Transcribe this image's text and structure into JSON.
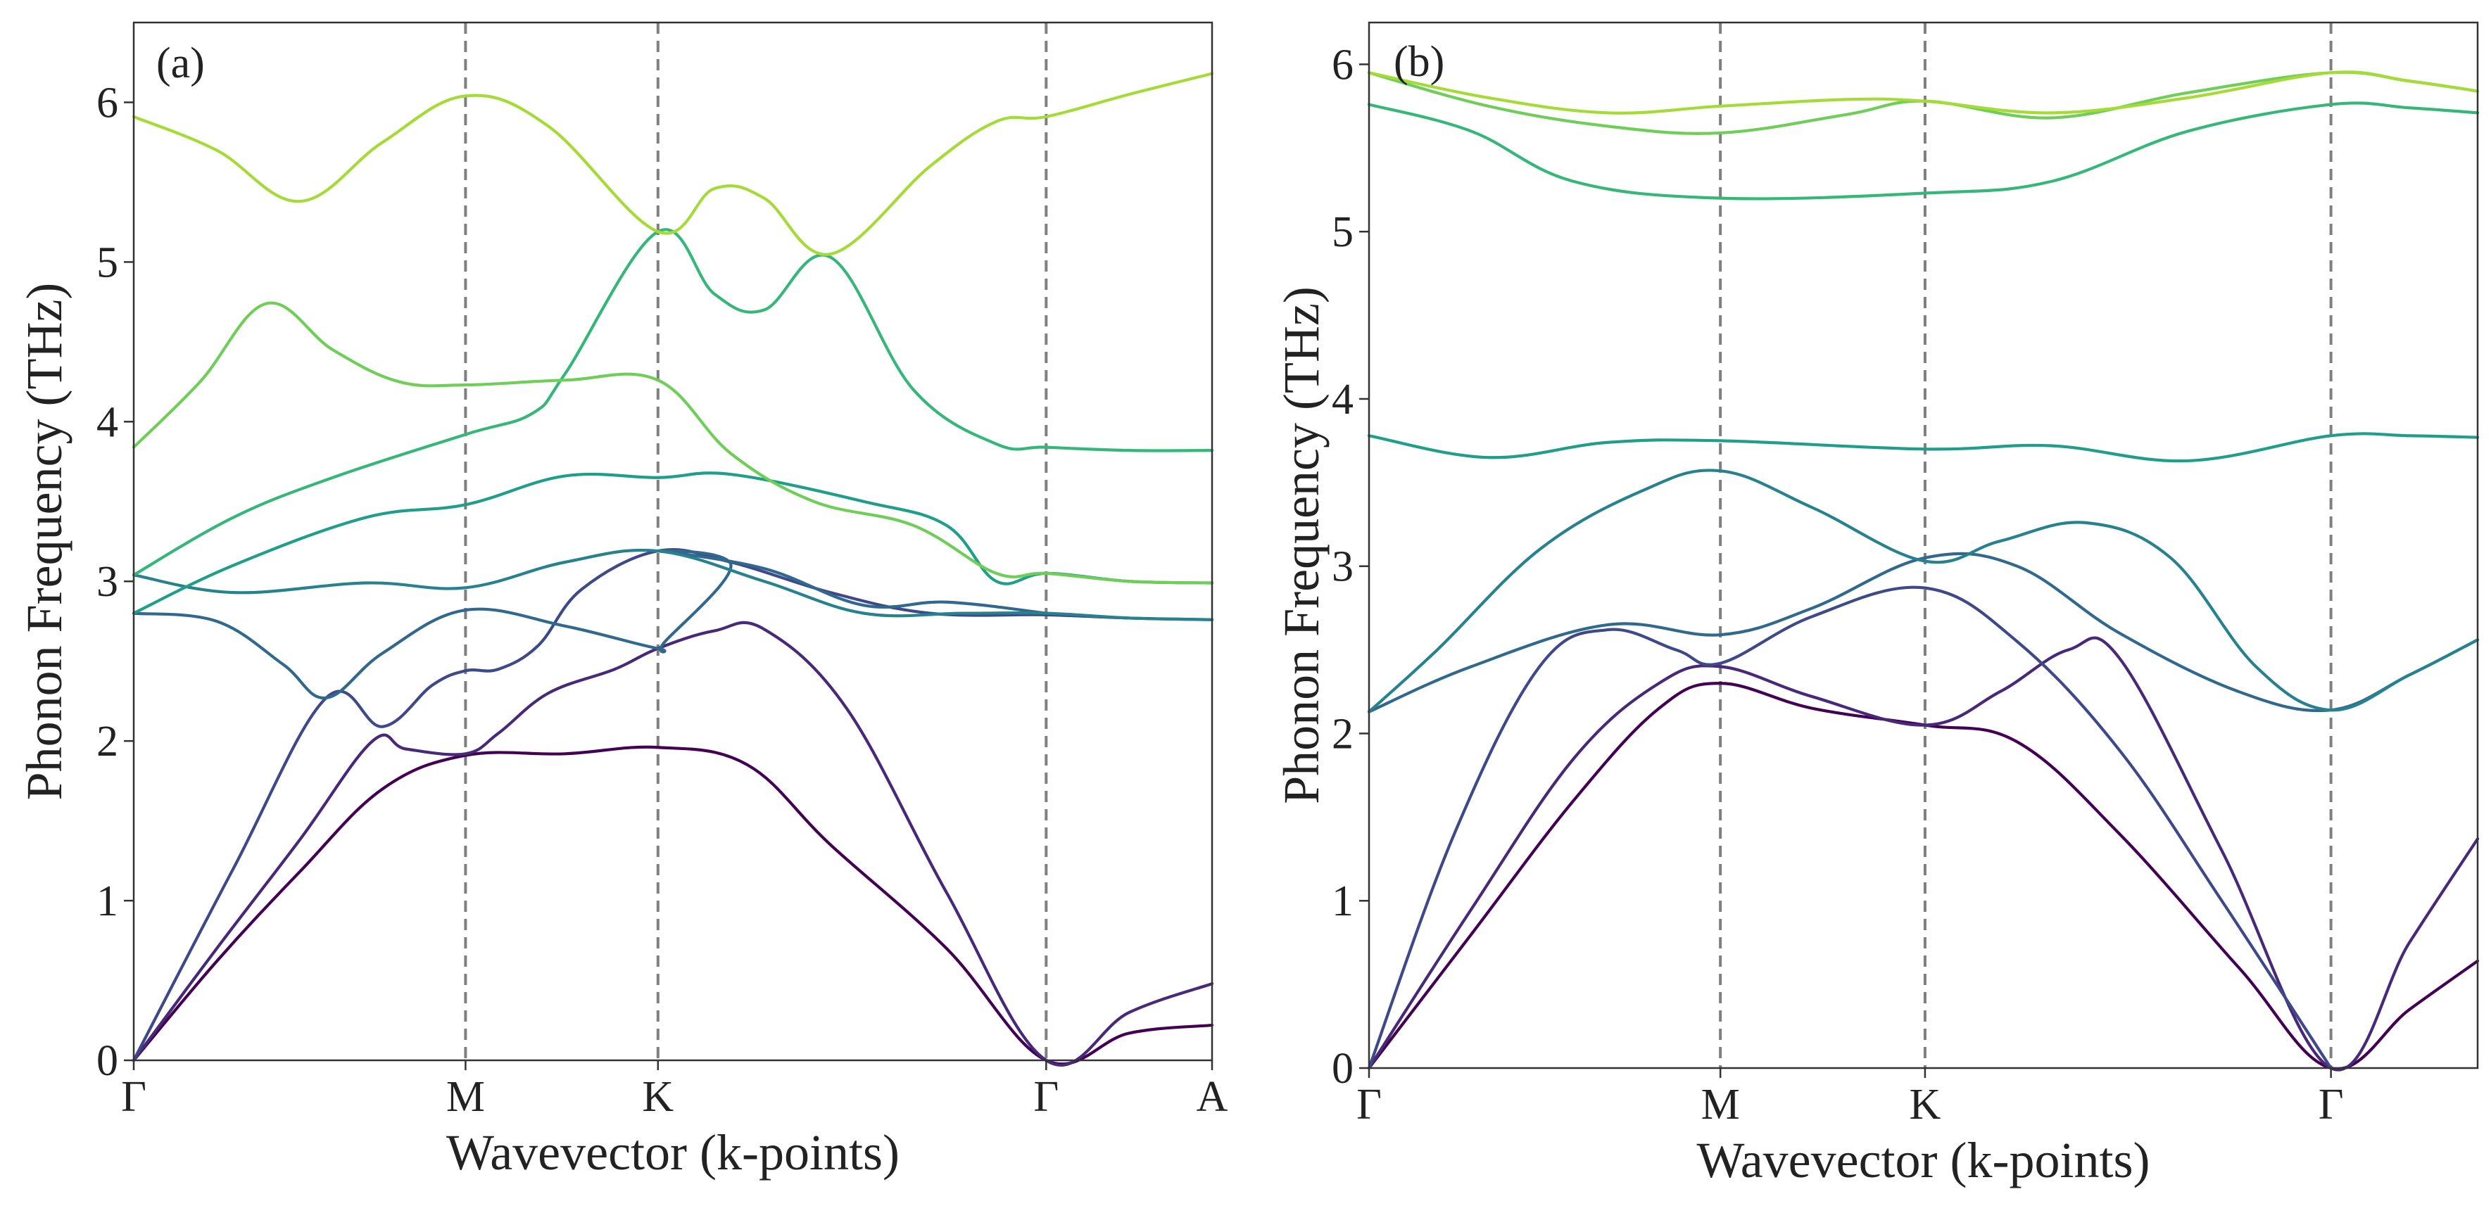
{
  "chart_data": [
    {
      "type": "line",
      "panel_label": "(a)",
      "xlabel": "Wavevector (k-points)",
      "ylabel": "Phonon Frequency (THz)",
      "ylim": [
        0,
        6.5
      ],
      "yticks": [
        0,
        1,
        2,
        3,
        4,
        5,
        6
      ],
      "xlim": [
        0,
        3.25
      ],
      "high_symmetry_points": [
        {
          "label": "Γ",
          "x": 0
        },
        {
          "label": "M",
          "x": 1.0
        },
        {
          "label": "K",
          "x": 1.58
        },
        {
          "label": "Γ",
          "x": 2.75
        },
        {
          "label": "A",
          "x": 3.25
        }
      ],
      "series": [
        {
          "name": "band 1",
          "color": "#440154",
          "points": [
            [
              0,
              0
            ],
            [
              0.25,
              0.62
            ],
            [
              0.5,
              1.18
            ],
            [
              0.75,
              1.7
            ],
            [
              1.0,
              1.91
            ],
            [
              1.3,
              1.92
            ],
            [
              1.58,
              1.96
            ],
            [
              1.85,
              1.85
            ],
            [
              2.1,
              1.35
            ],
            [
              2.45,
              0.7
            ],
            [
              2.75,
              0
            ],
            [
              3.0,
              0.17
            ],
            [
              3.25,
              0.22
            ]
          ]
        },
        {
          "name": "band 2",
          "color": "#482878",
          "points": [
            [
              0,
              0
            ],
            [
              0.25,
              0.7
            ],
            [
              0.5,
              1.38
            ],
            [
              0.72,
              2.0
            ],
            [
              0.82,
              1.95
            ],
            [
              1.0,
              1.92
            ],
            [
              1.1,
              2.05
            ],
            [
              1.25,
              2.3
            ],
            [
              1.45,
              2.45
            ],
            [
              1.58,
              2.58
            ],
            [
              1.75,
              2.69
            ],
            [
              1.9,
              2.7
            ],
            [
              2.15,
              2.2
            ],
            [
              2.45,
              1.05
            ],
            [
              2.75,
              0
            ],
            [
              3.0,
              0.3
            ],
            [
              3.25,
              0.48
            ]
          ]
        },
        {
          "name": "band 3",
          "color": "#3e4989",
          "points": [
            [
              0,
              0
            ],
            [
              0.3,
              1.2
            ],
            [
              0.58,
              2.27
            ],
            [
              0.75,
              2.09
            ],
            [
              0.9,
              2.35
            ],
            [
              1.0,
              2.44
            ],
            [
              1.1,
              2.45
            ],
            [
              1.22,
              2.6
            ],
            [
              1.35,
              2.95
            ],
            [
              1.58,
              3.19
            ],
            [
              1.8,
              3.12
            ],
            [
              2.1,
              2.93
            ],
            [
              2.4,
              2.8
            ],
            [
              2.75,
              2.79
            ],
            [
              3.0,
              2.77
            ],
            [
              3.25,
              2.76
            ]
          ]
        },
        {
          "name": "band 4",
          "color": "#31688e",
          "points": [
            [
              0,
              2.8
            ],
            [
              0.25,
              2.75
            ],
            [
              0.45,
              2.48
            ],
            [
              0.58,
              2.27
            ],
            [
              0.75,
              2.55
            ],
            [
              1.0,
              2.82
            ],
            [
              1.3,
              2.72
            ],
            [
              1.58,
              2.58
            ],
            [
              1.6,
              2.62
            ],
            [
              1.8,
              3.1
            ],
            [
              1.58,
              3.19
            ],
            [
              1.9,
              3.08
            ],
            [
              2.2,
              2.85
            ],
            [
              2.45,
              2.87
            ],
            [
              2.75,
              2.8
            ]
          ]
        },
        {
          "name": "band 5",
          "color": "#26828e",
          "points": [
            [
              0,
              3.04
            ],
            [
              0.3,
              2.93
            ],
            [
              0.7,
              2.99
            ],
            [
              1.0,
              2.96
            ],
            [
              1.3,
              3.12
            ],
            [
              1.58,
              3.19
            ],
            [
              1.9,
              3.0
            ],
            [
              2.2,
              2.8
            ],
            [
              2.5,
              2.8
            ],
            [
              2.75,
              2.8
            ],
            [
              3.0,
              2.77
            ],
            [
              3.25,
              2.76
            ]
          ]
        },
        {
          "name": "band 6",
          "color": "#1f9e89",
          "points": [
            [
              0,
              2.8
            ],
            [
              0.3,
              3.1
            ],
            [
              0.7,
              3.4
            ],
            [
              1.0,
              3.48
            ],
            [
              1.3,
              3.66
            ],
            [
              1.58,
              3.65
            ],
            [
              1.8,
              3.67
            ],
            [
              2.2,
              3.5
            ],
            [
              2.45,
              3.35
            ],
            [
              2.6,
              3.0
            ],
            [
              2.75,
              3.05
            ],
            [
              3.0,
              3.0
            ],
            [
              3.25,
              2.99
            ]
          ]
        },
        {
          "name": "band 7",
          "color": "#35b779",
          "points": [
            [
              0,
              3.04
            ],
            [
              0.3,
              3.4
            ],
            [
              0.6,
              3.65
            ],
            [
              1.0,
              3.92
            ],
            [
              1.2,
              4.05
            ],
            [
              1.3,
              4.3
            ],
            [
              1.58,
              5.19
            ],
            [
              1.75,
              4.8
            ],
            [
              1.9,
              4.7
            ],
            [
              2.1,
              5.03
            ],
            [
              2.35,
              4.2
            ],
            [
              2.6,
              3.86
            ],
            [
              2.75,
              3.84
            ],
            [
              3.0,
              3.82
            ],
            [
              3.25,
              3.82
            ]
          ]
        },
        {
          "name": "band 8",
          "color": "#6ece58",
          "points": [
            [
              0,
              3.84
            ],
            [
              0.2,
              4.25
            ],
            [
              0.4,
              4.74
            ],
            [
              0.6,
              4.45
            ],
            [
              0.8,
              4.25
            ],
            [
              1.0,
              4.23
            ],
            [
              1.3,
              4.26
            ],
            [
              1.58,
              4.26
            ],
            [
              1.8,
              3.8
            ],
            [
              2.05,
              3.5
            ],
            [
              2.35,
              3.35
            ],
            [
              2.6,
              3.05
            ],
            [
              2.75,
              3.05
            ],
            [
              3.0,
              3.0
            ],
            [
              3.25,
              2.99
            ]
          ]
        },
        {
          "name": "band 9",
          "color": "#a5db36",
          "points": [
            [
              0,
              5.91
            ],
            [
              0.25,
              5.7
            ],
            [
              0.5,
              5.38
            ],
            [
              0.75,
              5.75
            ],
            [
              1.0,
              6.04
            ],
            [
              1.25,
              5.85
            ],
            [
              1.58,
              5.19
            ],
            [
              1.75,
              5.46
            ],
            [
              1.9,
              5.4
            ],
            [
              2.1,
              5.05
            ],
            [
              2.4,
              5.6
            ],
            [
              2.6,
              5.88
            ],
            [
              2.75,
              5.91
            ],
            [
              3.0,
              6.05
            ],
            [
              3.25,
              6.18
            ]
          ]
        }
      ]
    },
    {
      "type": "line",
      "panel_label": "(b)",
      "xlabel": "Wavevector (k-points)",
      "ylabel": "Phonon Frequency (THz)",
      "ylim": [
        0,
        6.25
      ],
      "yticks": [
        0,
        1,
        2,
        3,
        4,
        5,
        6
      ],
      "xlim": [
        0,
        3.25
      ],
      "high_symmetry_points": [
        {
          "label": "Γ",
          "x": 0
        },
        {
          "label": "M",
          "x": 1.03
        },
        {
          "label": "K",
          "x": 1.63
        },
        {
          "label": "Γ",
          "x": 2.82
        }
      ],
      "series": [
        {
          "name": "band 1",
          "color": "#440154",
          "points": [
            [
              0,
              0
            ],
            [
              0.3,
              0.8
            ],
            [
              0.6,
              1.6
            ],
            [
              0.85,
              2.15
            ],
            [
              1.03,
              2.3
            ],
            [
              1.3,
              2.15
            ],
            [
              1.63,
              2.05
            ],
            [
              1.9,
              1.95
            ],
            [
              2.2,
              1.4
            ],
            [
              2.55,
              0.6
            ],
            [
              2.82,
              0
            ],
            [
              3.05,
              0.35
            ],
            [
              3.25,
              0.64
            ]
          ]
        },
        {
          "name": "band 2",
          "color": "#482878",
          "points": [
            [
              0,
              0
            ],
            [
              0.3,
              0.95
            ],
            [
              0.6,
              1.85
            ],
            [
              0.85,
              2.3
            ],
            [
              1.03,
              2.4
            ],
            [
              1.3,
              2.22
            ],
            [
              1.63,
              2.05
            ],
            [
              1.85,
              2.25
            ],
            [
              2.05,
              2.5
            ],
            [
              2.2,
              2.45
            ],
            [
              2.5,
              1.3
            ],
            [
              2.82,
              0
            ],
            [
              3.05,
              0.75
            ],
            [
              3.25,
              1.37
            ]
          ]
        },
        {
          "name": "band 3",
          "color": "#3e4989",
          "points": [
            [
              0,
              0
            ],
            [
              0.25,
              1.4
            ],
            [
              0.5,
              2.4
            ],
            [
              0.7,
              2.62
            ],
            [
              0.9,
              2.5
            ],
            [
              1.03,
              2.42
            ],
            [
              1.3,
              2.7
            ],
            [
              1.63,
              2.87
            ],
            [
              1.9,
              2.55
            ],
            [
              2.2,
              1.9
            ],
            [
              2.5,
              1.0
            ],
            [
              2.82,
              0
            ]
          ]
        },
        {
          "name": "band 4",
          "color": "#31688e",
          "points": [
            [
              0,
              2.13
            ],
            [
              0.3,
              2.4
            ],
            [
              0.7,
              2.65
            ],
            [
              1.03,
              2.59
            ],
            [
              1.3,
              2.75
            ],
            [
              1.63,
              3.05
            ],
            [
              1.9,
              3.0
            ],
            [
              2.2,
              2.6
            ],
            [
              2.55,
              2.25
            ],
            [
              2.82,
              2.14
            ],
            [
              3.05,
              2.35
            ],
            [
              3.25,
              2.56
            ]
          ]
        },
        {
          "name": "band 5",
          "color": "#26828e",
          "points": [
            [
              0,
              2.13
            ],
            [
              0.2,
              2.5
            ],
            [
              0.5,
              3.1
            ],
            [
              0.8,
              3.45
            ],
            [
              1.03,
              3.57
            ],
            [
              1.3,
              3.35
            ],
            [
              1.63,
              3.03
            ],
            [
              1.85,
              3.15
            ],
            [
              2.1,
              3.26
            ],
            [
              2.35,
              3.05
            ],
            [
              2.6,
              2.4
            ],
            [
              2.82,
              2.14
            ],
            [
              3.05,
              2.35
            ],
            [
              3.25,
              2.56
            ]
          ]
        },
        {
          "name": "band 6",
          "color": "#1f9e89",
          "points": [
            [
              0,
              3.78
            ],
            [
              0.35,
              3.65
            ],
            [
              0.7,
              3.74
            ],
            [
              1.03,
              3.75
            ],
            [
              1.63,
              3.7
            ],
            [
              2.0,
              3.72
            ],
            [
              2.4,
              3.63
            ],
            [
              2.82,
              3.78
            ],
            [
              3.05,
              3.78
            ],
            [
              3.25,
              3.77
            ]
          ]
        },
        {
          "name": "band 7",
          "color": "#35b779",
          "points": [
            [
              0,
              5.76
            ],
            [
              0.3,
              5.6
            ],
            [
              0.6,
              5.3
            ],
            [
              1.03,
              5.2
            ],
            [
              1.63,
              5.23
            ],
            [
              2.0,
              5.3
            ],
            [
              2.4,
              5.6
            ],
            [
              2.82,
              5.76
            ],
            [
              3.05,
              5.74
            ],
            [
              3.25,
              5.71
            ]
          ]
        },
        {
          "name": "band 8",
          "color": "#6ece58",
          "points": [
            [
              0,
              5.95
            ],
            [
              0.35,
              5.75
            ],
            [
              0.7,
              5.63
            ],
            [
              1.03,
              5.59
            ],
            [
              1.4,
              5.7
            ],
            [
              1.63,
              5.78
            ],
            [
              2.0,
              5.68
            ],
            [
              2.4,
              5.83
            ],
            [
              2.82,
              5.95
            ],
            [
              3.05,
              5.9
            ],
            [
              3.25,
              5.84
            ]
          ]
        },
        {
          "name": "band 9",
          "color": "#a5db36",
          "points": [
            [
              0,
              5.95
            ],
            [
              0.35,
              5.8
            ],
            [
              0.7,
              5.71
            ],
            [
              1.03,
              5.75
            ],
            [
              1.4,
              5.79
            ],
            [
              1.63,
              5.78
            ],
            [
              2.0,
              5.71
            ],
            [
              2.4,
              5.8
            ],
            [
              2.82,
              5.95
            ],
            [
              3.05,
              5.9
            ],
            [
              3.25,
              5.84
            ]
          ]
        }
      ]
    }
  ]
}
